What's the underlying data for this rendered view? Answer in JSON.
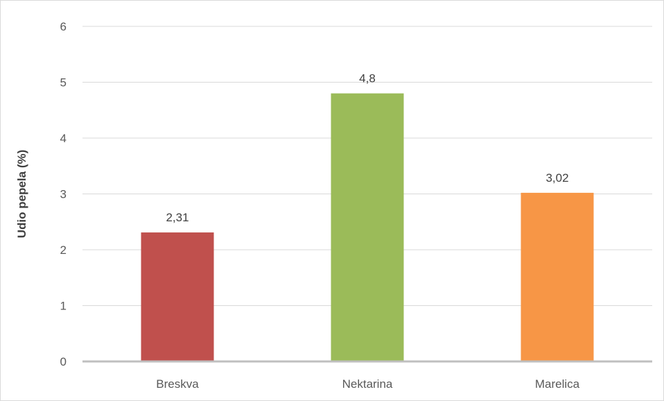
{
  "chart_data": {
    "type": "bar",
    "categories": [
      "Breskva",
      "Nektarina",
      "Marelica"
    ],
    "values": [
      2.31,
      4.8,
      3.02
    ],
    "data_labels": [
      "2,31",
      "4,8",
      "3,02"
    ],
    "colors": [
      "#c0504d",
      "#9bbb59",
      "#f79646"
    ],
    "title": "",
    "xlabel": "",
    "ylabel": "Udio pepela (%)",
    "ylim": [
      0,
      6
    ],
    "yticks": [
      0,
      1,
      2,
      3,
      4,
      5,
      6
    ],
    "ytick_labels": [
      "0",
      "1",
      "2",
      "3",
      "4",
      "5",
      "6"
    ],
    "grid": true,
    "legend": "none"
  }
}
